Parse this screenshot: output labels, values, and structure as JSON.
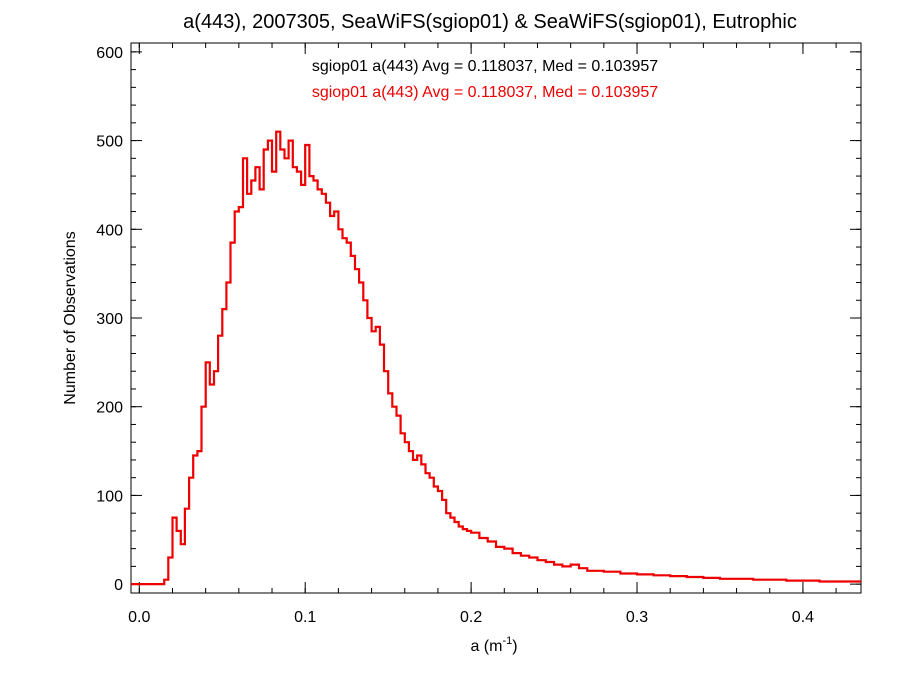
{
  "chart_data": {
    "type": "line",
    "title": "a(443), 2007305, SeaWiFS(sgiop01) & SeaWiFS(sgiop01), Eutrophic",
    "xlabel": "a (m",
    "xlabel_sup": "-1",
    "xlabel_close": ")",
    "ylabel": "Number of Observations",
    "xlim": [
      -0.005,
      0.435
    ],
    "ylim": [
      -10,
      610
    ],
    "x_ticks": [
      0.0,
      0.1,
      0.2,
      0.3,
      0.4
    ],
    "x_tick_labels": [
      "0.0",
      "0.1",
      "0.2",
      "0.3",
      "0.4"
    ],
    "x_minor_step": 0.02,
    "y_ticks": [
      0,
      100,
      200,
      300,
      400,
      500,
      600
    ],
    "y_tick_labels": [
      "0",
      "100",
      "200",
      "300",
      "400",
      "500",
      "600"
    ],
    "y_minor_step": 20,
    "step_style": "histogram",
    "annotations": [
      {
        "text": "sgiop01 a(443) Avg = 0.118037, Med = 0.103957",
        "color": "#000000"
      },
      {
        "text": "sgiop01 a(443) Avg = 0.118037, Med = 0.103957",
        "color": "#ee0000"
      }
    ],
    "series": [
      {
        "color": "#ee0000",
        "x": [
          0.0,
          0.015,
          0.0175,
          0.02,
          0.0225,
          0.025,
          0.0275,
          0.03,
          0.0325,
          0.035,
          0.0375,
          0.04,
          0.0425,
          0.045,
          0.0475,
          0.05,
          0.0525,
          0.055,
          0.0575,
          0.06,
          0.0625,
          0.065,
          0.0675,
          0.07,
          0.0725,
          0.075,
          0.0775,
          0.08,
          0.0825,
          0.085,
          0.0875,
          0.09,
          0.0925,
          0.095,
          0.0975,
          0.1,
          0.1025,
          0.105,
          0.1075,
          0.11,
          0.1125,
          0.115,
          0.1175,
          0.12,
          0.1225,
          0.125,
          0.1275,
          0.13,
          0.1325,
          0.135,
          0.1375,
          0.14,
          0.1425,
          0.145,
          0.1475,
          0.15,
          0.1525,
          0.155,
          0.1575,
          0.16,
          0.1625,
          0.165,
          0.1675,
          0.17,
          0.1725,
          0.175,
          0.1775,
          0.18,
          0.1825,
          0.185,
          0.1875,
          0.19,
          0.1925,
          0.195,
          0.1975,
          0.2,
          0.205,
          0.21,
          0.215,
          0.22,
          0.225,
          0.23,
          0.235,
          0.24,
          0.245,
          0.25,
          0.255,
          0.26,
          0.265,
          0.27,
          0.28,
          0.29,
          0.3,
          0.31,
          0.32,
          0.33,
          0.34,
          0.35,
          0.36,
          0.37,
          0.38,
          0.39,
          0.4,
          0.41,
          0.42,
          0.43
        ],
        "y": [
          0,
          5,
          30,
          75,
          60,
          45,
          85,
          120,
          145,
          150,
          200,
          250,
          225,
          240,
          280,
          310,
          340,
          385,
          420,
          425,
          480,
          440,
          455,
          470,
          445,
          490,
          500,
          465,
          510,
          490,
          480,
          500,
          470,
          465,
          450,
          495,
          460,
          455,
          445,
          440,
          430,
          415,
          420,
          400,
          390,
          385,
          370,
          355,
          340,
          320,
          300,
          285,
          290,
          270,
          240,
          215,
          200,
          190,
          170,
          160,
          150,
          140,
          145,
          135,
          125,
          120,
          110,
          105,
          95,
          80,
          75,
          70,
          65,
          62,
          60,
          58,
          52,
          48,
          42,
          40,
          35,
          32,
          30,
          27,
          25,
          22,
          20,
          22,
          18,
          15,
          14,
          12,
          11,
          10,
          9,
          8,
          7,
          6,
          6,
          5,
          5,
          4,
          4,
          3,
          3,
          3
        ]
      }
    ]
  }
}
